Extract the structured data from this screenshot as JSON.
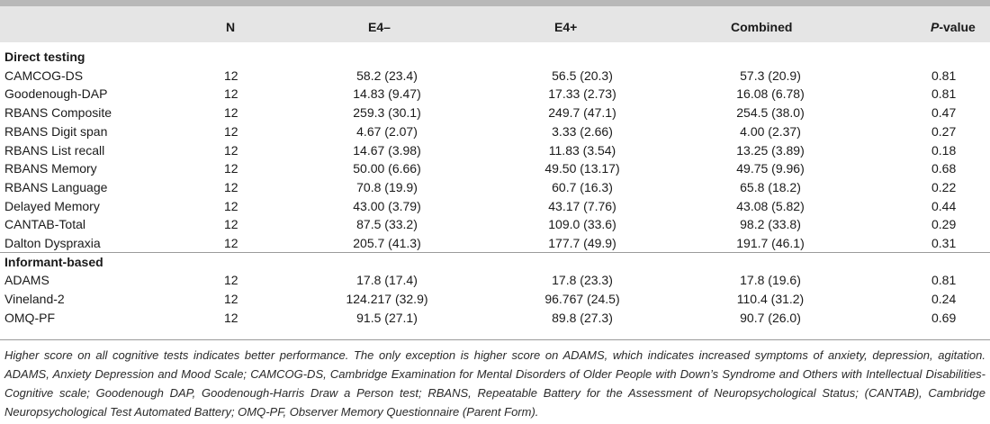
{
  "table": {
    "columns": [
      "",
      "N",
      "E4–",
      "E4+",
      "Combined",
      "-value"
    ],
    "pvalue_prefix": "P",
    "sections": [
      {
        "title": "Direct testing",
        "rows": [
          {
            "label": "CAMCOG-DS",
            "n": "12",
            "e4m": "58.2 (23.4)",
            "e4p": "56.5 (20.3)",
            "comb": "57.3 (20.9)",
            "p": "0.81"
          },
          {
            "label": "Goodenough-DAP",
            "n": "12",
            "e4m": "14.83 (9.47)",
            "e4p": "17.33 (2.73)",
            "comb": "16.08 (6.78)",
            "p": "0.81"
          },
          {
            "label": "RBANS Composite",
            "n": "12",
            "e4m": "259.3 (30.1)",
            "e4p": "249.7 (47.1)",
            "comb": "254.5 (38.0)",
            "p": "0.47"
          },
          {
            "label": "RBANS Digit span",
            "n": "12",
            "e4m": "4.67 (2.07)",
            "e4p": "3.33 (2.66)",
            "comb": "4.00 (2.37)",
            "p": "0.27"
          },
          {
            "label": "RBANS List recall",
            "n": "12",
            "e4m": "14.67 (3.98)",
            "e4p": "11.83 (3.54)",
            "comb": "13.25 (3.89)",
            "p": "0.18"
          },
          {
            "label": "RBANS Memory",
            "n": "12",
            "e4m": "50.00 (6.66)",
            "e4p": "49.50 (13.17)",
            "comb": "49.75 (9.96)",
            "p": "0.68"
          },
          {
            "label": "RBANS Language",
            "n": "12",
            "e4m": "70.8 (19.9)",
            "e4p": "60.7 (16.3)",
            "comb": "65.8 (18.2)",
            "p": "0.22"
          },
          {
            "label": "Delayed Memory",
            "n": "12",
            "e4m": "43.00 (3.79)",
            "e4p": "43.17 (7.76)",
            "comb": "43.08 (5.82)",
            "p": "0.44"
          },
          {
            "label": "CANTAB-Total",
            "n": "12",
            "e4m": "87.5 (33.2)",
            "e4p": "109.0 (33.6)",
            "comb": "98.2 (33.8)",
            "p": "0.29"
          },
          {
            "label": "Dalton Dyspraxia",
            "n": "12",
            "e4m": "205.7 (41.3)",
            "e4p": "177.7 (49.9)",
            "comb": "191.7 (46.1)",
            "p": "0.31"
          }
        ]
      },
      {
        "title": "Informant-based",
        "rows": [
          {
            "label": "ADAMS",
            "n": "12",
            "e4m": "17.8 (17.4)",
            "e4p": "17.8 (23.3)",
            "comb": "17.8 (19.6)",
            "p": "0.81"
          },
          {
            "label": "Vineland-2",
            "n": "12",
            "e4m": "124.217 (32.9)",
            "e4p": "96.767 (24.5)",
            "comb": "110.4 (31.2)",
            "p": "0.24"
          },
          {
            "label": "OMQ-PF",
            "n": "12",
            "e4m": "91.5 (27.1)",
            "e4p": "89.8 (27.3)",
            "comb": "90.7 (26.0)",
            "p": "0.69"
          }
        ]
      }
    ]
  },
  "footnote": "Higher score on all cognitive tests indicates better performance. The only exception is higher score on ADAMS, which indicates increased symptoms of anxiety, depression, agitation. ADAMS, Anxiety Depression and Mood Scale; CAMCOG-DS, Cambridge Examination for Mental Disorders of Older People with Down’s Syndrome and Others with Intellectual Disabilities-Cognitive scale; Goodenough DAP, Goodenough-Harris Draw a Person test; RBANS, Repeatable Battery for the Assessment of Neuropsychological Status; (CANTAB), Cambridge Neuropsychological Test Automated Battery; OMQ-PF, Observer Memory Questionnaire (Parent Form)."
}
